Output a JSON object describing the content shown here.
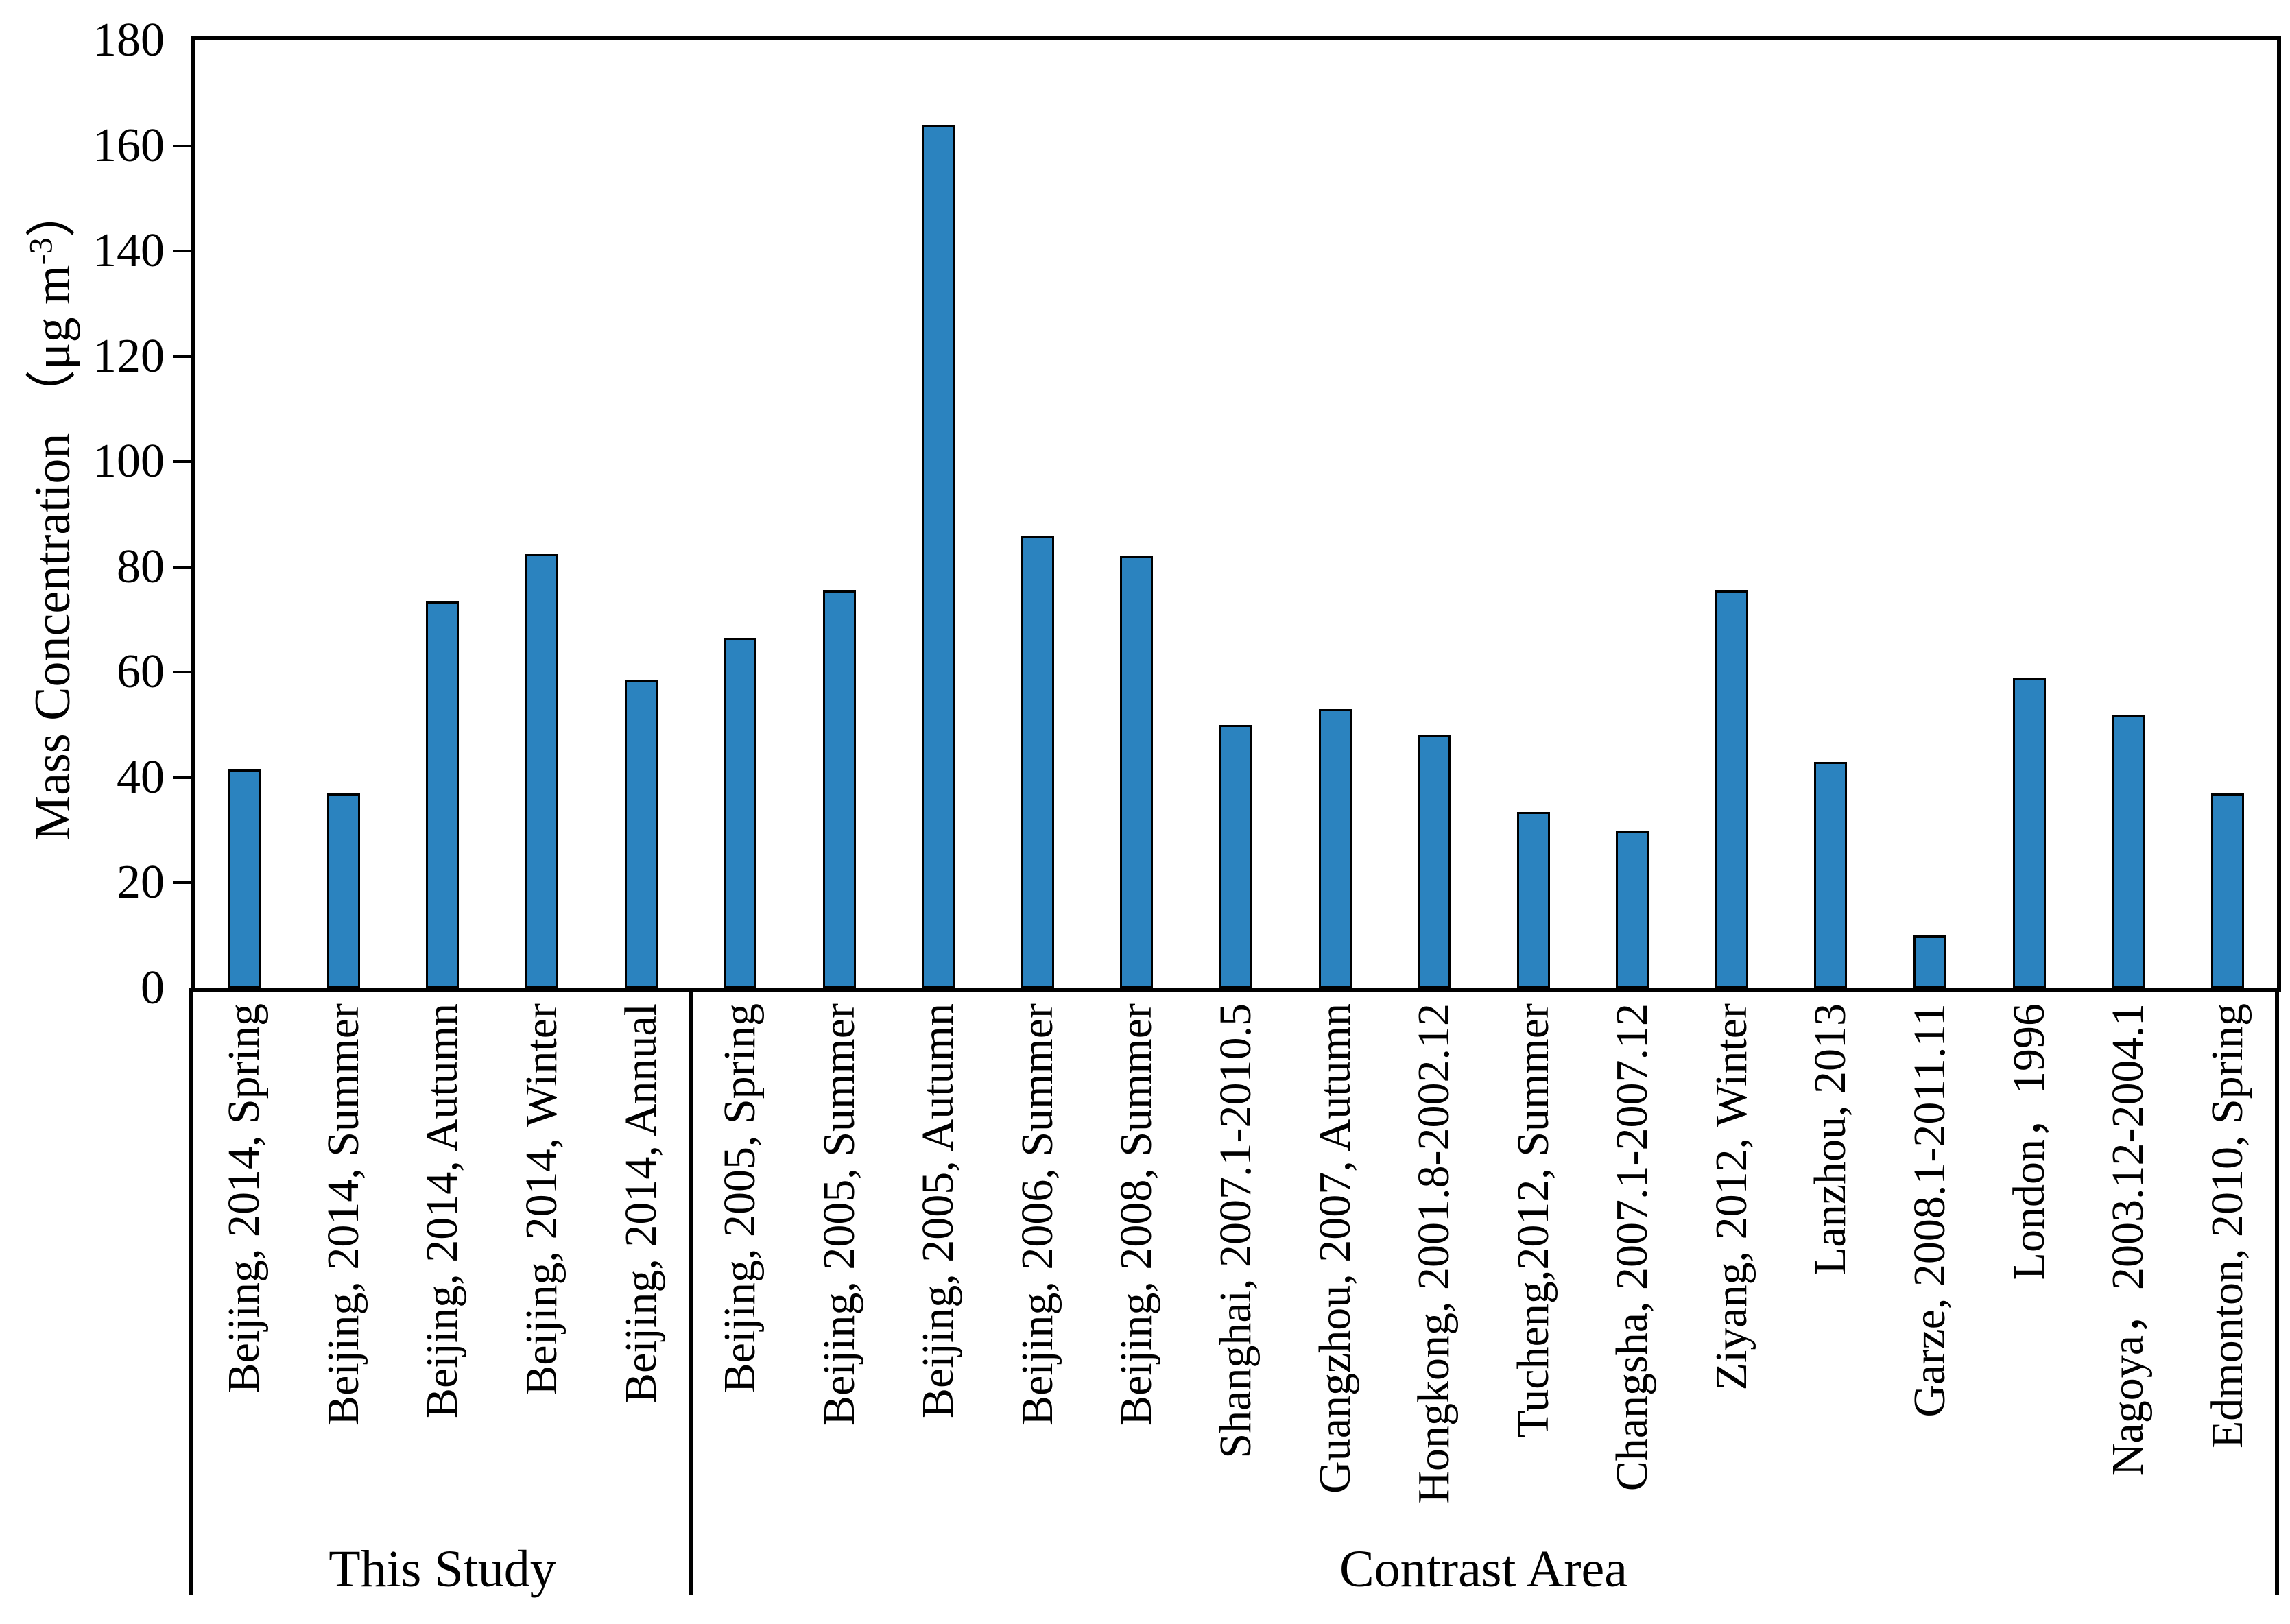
{
  "chart_data": {
    "type": "bar",
    "title": "",
    "xlabel": "",
    "ylabel": {
      "prefix": "Mass Concentration （μg m",
      "superscript": "-3",
      "suffix": "）"
    },
    "ylim": [
      0,
      180
    ],
    "yticks": [
      0,
      20,
      40,
      60,
      80,
      100,
      120,
      140,
      160,
      180
    ],
    "grid": "off",
    "legend": "none",
    "bar_color": "#2B83BF",
    "bar_border_color": "#000000",
    "groups": [
      {
        "label": "This Study",
        "bars": [
          {
            "category": "Beijing, 2014, Spring",
            "value": 41.5
          },
          {
            "category": "Beijing, 2014, Summer",
            "value": 37
          },
          {
            "category": "Beijing, 2014, Autumn",
            "value": 73.5
          },
          {
            "category": "Beijing, 2014, Winter",
            "value": 82.5
          },
          {
            "category": "Beijing, 2014, Annual",
            "value": 58.5
          }
        ]
      },
      {
        "label": "Contrast Area",
        "bars": [
          {
            "category": "Beijing, 2005, Spring",
            "value": 66.5
          },
          {
            "category": "Beijing, 2005, Summer",
            "value": 75.5
          },
          {
            "category": "Beijing, 2005, Autumn",
            "value": 164
          },
          {
            "category": "Beijing, 2006, Summer",
            "value": 86
          },
          {
            "category": "Beijing, 2008, Summer",
            "value": 82
          },
          {
            "category": "Shanghai, 2007.1-2010.5",
            "value": 50
          },
          {
            "category": "Guangzhou, 2007, Autumn",
            "value": 53
          },
          {
            "category": "Hongkong, 2001.8-2002.12",
            "value": 48
          },
          {
            "category": "Tucheng,2012, Summer",
            "value": 33.5
          },
          {
            "category": "Changsha, 2007.1-2007.12",
            "value": 30
          },
          {
            "category": "Ziyang, 2012, Winter",
            "value": 75.5
          },
          {
            "category": "Lanzhou, 2013",
            "value": 43
          },
          {
            "category": "Garze, 2008.1-2011.11",
            "value": 10
          },
          {
            "category": "London，1996",
            "value": 59
          },
          {
            "category": "Nagoya，2003.12-2004.1",
            "value": 52
          },
          {
            "category": "Edmonton, 2010, Spring",
            "value": 37
          }
        ]
      }
    ]
  }
}
